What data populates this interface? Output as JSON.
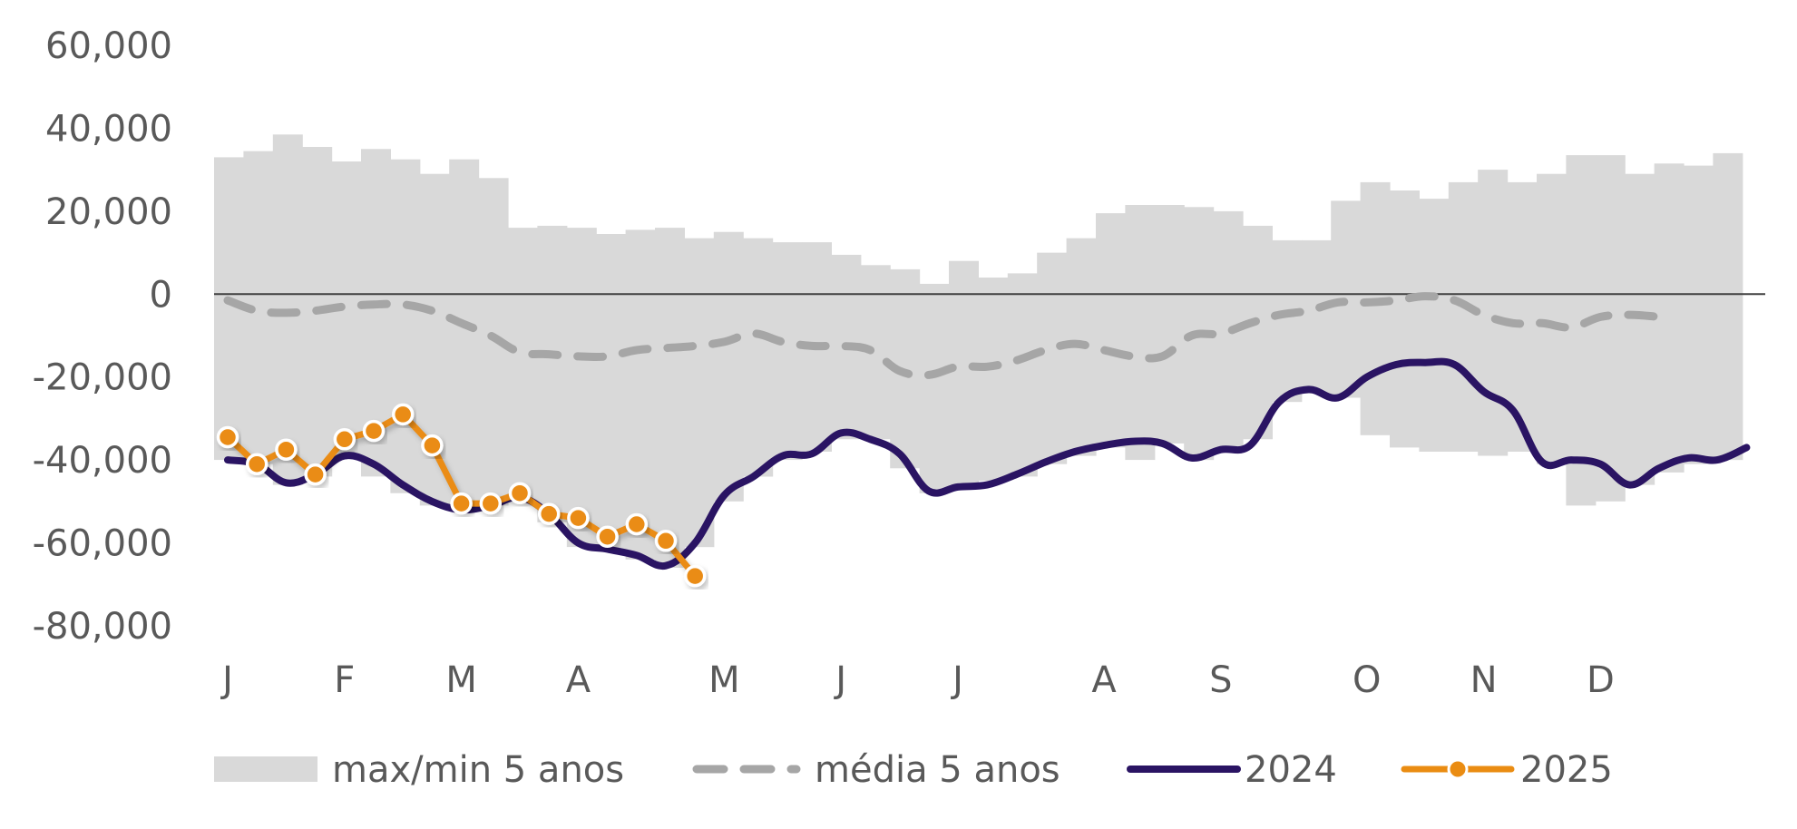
{
  "chart_data": {
    "type": "line",
    "title": "",
    "xlabel": "",
    "ylabel": "",
    "ylim": [
      -80000,
      60000
    ],
    "yticks": [
      60000,
      40000,
      20000,
      0,
      -20000,
      -40000,
      -60000,
      -80000
    ],
    "ytick_labels": [
      "60,000",
      "40,000",
      "20,000",
      "0",
      "-20,000",
      "-40,000",
      "-60,000",
      "-80,000"
    ],
    "weeks": 53,
    "month_labels": [
      {
        "label": "J",
        "week": 1
      },
      {
        "label": "F",
        "week": 5
      },
      {
        "label": "M",
        "week": 9
      },
      {
        "label": "A",
        "week": 13
      },
      {
        "label": "M",
        "week": 18
      },
      {
        "label": "J",
        "week": 22
      },
      {
        "label": "J",
        "week": 26
      },
      {
        "label": "A",
        "week": 31
      },
      {
        "label": "S",
        "week": 35
      },
      {
        "label": "O",
        "week": 40
      },
      {
        "label": "N",
        "week": 44
      },
      {
        "label": "D",
        "week": 48
      }
    ],
    "grid": false,
    "legend_position": "bottom",
    "colors": {
      "band": "#d9d9d9",
      "avg": "#a6a6a6",
      "y2024": "#2a1463",
      "y2025": "#ea8c12",
      "zero_line": "#404040"
    },
    "band": {
      "name": "max/min 5 anos",
      "max": [
        33000,
        34500,
        38500,
        35500,
        32000,
        35000,
        32500,
        29000,
        32500,
        28000,
        16000,
        16500,
        16000,
        14500,
        15500,
        16000,
        13500,
        15000,
        13500,
        12500,
        12500,
        9500,
        7000,
        6000,
        2500,
        8000,
        4000,
        5000,
        10000,
        13500,
        19500,
        21500,
        21500,
        21000,
        20000,
        16500,
        13000,
        13000,
        22500,
        27000,
        25000,
        23000,
        27000,
        30000,
        27000,
        29000,
        33500,
        33500,
        29000,
        31500,
        31000,
        34000
      ],
      "min": [
        -40000,
        -41000,
        -46000,
        -44000,
        -39000,
        -44000,
        -48000,
        -51000,
        -52000,
        -51000,
        -50000,
        -55000,
        -61000,
        -62000,
        -64000,
        -66000,
        -61000,
        -50000,
        -44000,
        -40000,
        -38000,
        -35000,
        -35000,
        -42000,
        -48000,
        -46000,
        -45000,
        -44000,
        -41000,
        -39000,
        -37000,
        -40000,
        -36000,
        -40000,
        -38000,
        -35000,
        -26000,
        -24000,
        -25000,
        -34000,
        -37000,
        -38000,
        -38000,
        -39000,
        -38000,
        -41000,
        -51000,
        -50000,
        -46000,
        -43000,
        -41000,
        -40000
      ]
    },
    "series": [
      {
        "name": "média 5 anos",
        "style": "dashed",
        "values": [
          -1500,
          -4000,
          -4500,
          -4000,
          -3000,
          -2500,
          -2500,
          -4000,
          -7000,
          -10000,
          -14000,
          -14500,
          -15000,
          -15000,
          -13500,
          -13000,
          -12500,
          -11500,
          -9500,
          -11500,
          -12500,
          -12500,
          -13500,
          -18500,
          -19500,
          -17500,
          -17500,
          -16000,
          -13500,
          -12000,
          -13500,
          -15000,
          -15000,
          -10000,
          -9500,
          -7000,
          -5000,
          -4000,
          -2000,
          -2000,
          -1500,
          -500,
          -1500,
          -5000,
          -7000,
          -7000,
          -8000,
          -5500,
          -5000,
          -5500
        ]
      },
      {
        "name": "2024",
        "style": "solid",
        "values": [
          -40000,
          -41000,
          -45500,
          -43500,
          -39000,
          -41000,
          -46000,
          -50000,
          -52000,
          -51000,
          -49000,
          -53000,
          -60000,
          -61500,
          -63000,
          -65500,
          -60000,
          -48500,
          -44000,
          -39000,
          -38500,
          -33500,
          -35000,
          -38500,
          -47500,
          -46500,
          -46000,
          -43500,
          -40500,
          -38000,
          -36500,
          -35500,
          -36000,
          -39500,
          -37500,
          -36500,
          -26000,
          -23000,
          -25000,
          -20000,
          -17000,
          -16500,
          -17000,
          -23500,
          -28000,
          -40500,
          -40000,
          -41000,
          -46000,
          -42000,
          -39500,
          -40000,
          -37000
        ]
      },
      {
        "name": "2025",
        "style": "solid-markers",
        "values": [
          -34500,
          -41000,
          -37500,
          -43500,
          -35000,
          -33000,
          -29000,
          -36500,
          -50500,
          -50500,
          -48000,
          -53000,
          -54000,
          -58500,
          -55500,
          -59500,
          -68000
        ]
      }
    ]
  },
  "legend": {
    "items": [
      {
        "key": "band",
        "label": "max/min 5 anos"
      },
      {
        "key": "avg",
        "label": "média 5 anos"
      },
      {
        "key": "y2024",
        "label": "2024"
      },
      {
        "key": "y2025",
        "label": "2025"
      }
    ]
  }
}
